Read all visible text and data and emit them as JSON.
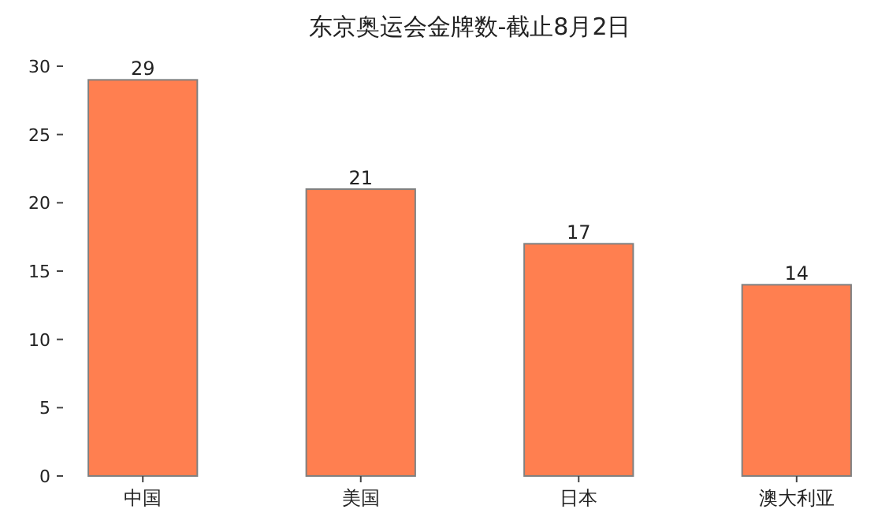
{
  "chart_data": {
    "type": "bar",
    "title": "东京奥运会金牌数-截止8月2日",
    "categories": [
      "中国",
      "美国",
      "日本",
      "澳大利亚"
    ],
    "values": [
      29,
      21,
      17,
      14
    ],
    "color": "#ff7f50",
    "ylim": [
      0,
      30
    ],
    "yticks": [
      0,
      5,
      10,
      15,
      20,
      25,
      30
    ],
    "data_labels": true
  }
}
